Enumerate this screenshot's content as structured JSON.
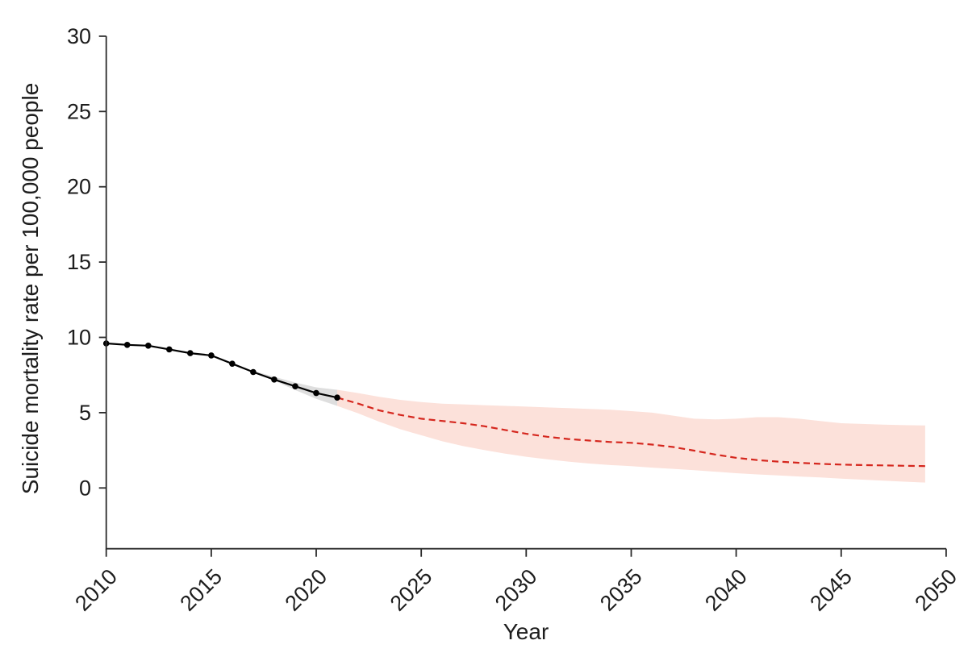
{
  "colors": {
    "observed_line": "#000000",
    "observed_band": "#dedede",
    "projection_line": "#d5271e",
    "projection_band": "#fce1da",
    "axis": "#2a2a2a",
    "text": "#1d1d1d",
    "background": "#ffffff"
  },
  "chart_data": {
    "type": "line",
    "title": "",
    "xlabel": "Year",
    "ylabel": "Suicide mortality rate per 100,000 people",
    "xlim": [
      2010,
      2050
    ],
    "ylim": [
      0,
      30
    ],
    "grid": false,
    "legend_position": "none",
    "x_ticks": [
      2010,
      2015,
      2020,
      2025,
      2030,
      2035,
      2040,
      2045,
      2050
    ],
    "y_ticks": [
      0,
      5,
      10,
      15,
      20,
      25,
      30
    ],
    "series": [
      {
        "name": "observed",
        "type": "line_with_markers",
        "color": "#000000",
        "x": [
          2010,
          2011,
          2012,
          2013,
          2014,
          2015,
          2016,
          2017,
          2018,
          2019,
          2020,
          2021
        ],
        "y": [
          9.6,
          9.5,
          9.45,
          9.2,
          8.95,
          8.8,
          8.25,
          7.7,
          7.2,
          6.75,
          6.3,
          6.0
        ]
      },
      {
        "name": "observed_uncertainty_band",
        "type": "band",
        "color": "#dedede",
        "x": [
          2017,
          2018,
          2019,
          2020,
          2021
        ],
        "upper": [
          7.78,
          7.38,
          7.0,
          6.68,
          6.52
        ],
        "lower": [
          7.7,
          7.12,
          6.5,
          5.92,
          5.45
        ]
      },
      {
        "name": "projection",
        "type": "dashed_line",
        "color": "#d5271e",
        "x": [
          2021,
          2022,
          2023,
          2024,
          2025,
          2026,
          2027,
          2028,
          2029,
          2030,
          2031,
          2032,
          2033,
          2034,
          2035,
          2036,
          2037,
          2038,
          2039,
          2040,
          2041,
          2042,
          2043,
          2044,
          2045,
          2046,
          2047,
          2048,
          2049
        ],
        "y": [
          6.0,
          5.6,
          5.15,
          4.85,
          4.6,
          4.45,
          4.3,
          4.1,
          3.85,
          3.6,
          3.4,
          3.25,
          3.15,
          3.05,
          3.0,
          2.88,
          2.72,
          2.48,
          2.22,
          2.0,
          1.85,
          1.75,
          1.67,
          1.6,
          1.55,
          1.52,
          1.5,
          1.47,
          1.45
        ]
      },
      {
        "name": "projection_uncertainty_band",
        "type": "band",
        "color": "#fce1da",
        "x": [
          2021,
          2022,
          2023,
          2024,
          2025,
          2026,
          2027,
          2028,
          2029,
          2030,
          2031,
          2032,
          2033,
          2034,
          2035,
          2036,
          2037,
          2038,
          2039,
          2040,
          2041,
          2042,
          2043,
          2044,
          2045,
          2046,
          2047,
          2048,
          2049
        ],
        "upper": [
          6.52,
          6.3,
          6.05,
          5.85,
          5.7,
          5.6,
          5.55,
          5.5,
          5.45,
          5.4,
          5.35,
          5.3,
          5.25,
          5.2,
          5.1,
          5.0,
          4.8,
          4.6,
          4.55,
          4.6,
          4.7,
          4.7,
          4.6,
          4.45,
          4.3,
          4.25,
          4.2,
          4.17,
          4.15
        ],
        "lower": [
          5.45,
          4.95,
          4.4,
          3.9,
          3.5,
          3.1,
          2.78,
          2.52,
          2.28,
          2.07,
          1.9,
          1.75,
          1.62,
          1.52,
          1.45,
          1.35,
          1.27,
          1.18,
          1.08,
          0.98,
          0.9,
          0.83,
          0.76,
          0.7,
          0.62,
          0.55,
          0.48,
          0.42,
          0.36
        ]
      }
    ]
  }
}
